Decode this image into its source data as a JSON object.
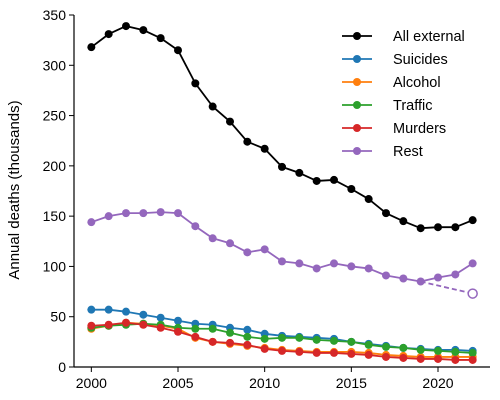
{
  "chart_data": {
    "type": "line",
    "title": "",
    "xlabel": "",
    "ylabel": "Annual deaths (thousands)",
    "xlim": [
      1999,
      2023
    ],
    "ylim": [
      0,
      350
    ],
    "x_ticks": [
      2000,
      2005,
      2010,
      2015,
      2020
    ],
    "x_tick_labels": [
      "2000",
      "2005",
      "2010",
      "2015",
      "2020"
    ],
    "y_ticks": [
      0,
      50,
      100,
      150,
      200,
      250,
      300,
      350
    ],
    "y_tick_labels": [
      "0",
      "50",
      "100",
      "150",
      "200",
      "250",
      "300",
      "350"
    ],
    "grid": false,
    "legend_position": "top-right",
    "x": [
      2000,
      2001,
      2002,
      2003,
      2004,
      2005,
      2006,
      2007,
      2008,
      2009,
      2010,
      2011,
      2012,
      2013,
      2014,
      2015,
      2016,
      2017,
      2018,
      2019,
      2020,
      2021,
      2022
    ],
    "series": [
      {
        "name": "All external",
        "color": "#000000",
        "values": [
          318,
          331,
          339,
          335,
          327,
          315,
          282,
          259,
          244,
          224,
          217,
          199,
          193,
          185,
          186,
          177,
          167,
          153,
          145,
          138,
          139,
          139,
          146
        ]
      },
      {
        "name": "Suicides",
        "color": "#1f77b4",
        "values": [
          57,
          57,
          55,
          52,
          49,
          46,
          43,
          42,
          39,
          37,
          33,
          31,
          30,
          29,
          28,
          25,
          23,
          21,
          19,
          18,
          17,
          17,
          16
        ]
      },
      {
        "name": "Alcohol",
        "color": "#ff7f0e",
        "values": [
          38,
          41,
          44,
          43,
          41,
          38,
          29,
          25,
          23,
          21,
          19,
          17,
          16,
          15,
          15,
          15,
          14,
          12,
          11,
          10,
          10,
          10,
          10
        ]
      },
      {
        "name": "Traffic",
        "color": "#2ca02c",
        "values": [
          39,
          41,
          42,
          43,
          42,
          39,
          38,
          38,
          34,
          30,
          28,
          29,
          29,
          27,
          26,
          25,
          22,
          20,
          19,
          17,
          16,
          15,
          14
        ]
      },
      {
        "name": "Murders",
        "color": "#d62728",
        "values": [
          41,
          42,
          44,
          42,
          39,
          35,
          30,
          25,
          24,
          22,
          18,
          16,
          15,
          14,
          14,
          13,
          12,
          10,
          9,
          8,
          8,
          7,
          7
        ]
      },
      {
        "name": "Rest",
        "color": "#9467bd",
        "values": [
          144,
          150,
          153,
          153,
          154,
          153,
          140,
          128,
          123,
          114,
          117,
          105,
          103,
          98,
          103,
          100,
          98,
          91,
          88,
          85,
          89,
          92,
          103
        ]
      }
    ],
    "projection": {
      "series": "Rest",
      "color": "#9467bd",
      "style": "dashed",
      "x": [
        2019,
        2022
      ],
      "values": [
        85,
        73
      ],
      "end_marker": "open-circle"
    }
  }
}
